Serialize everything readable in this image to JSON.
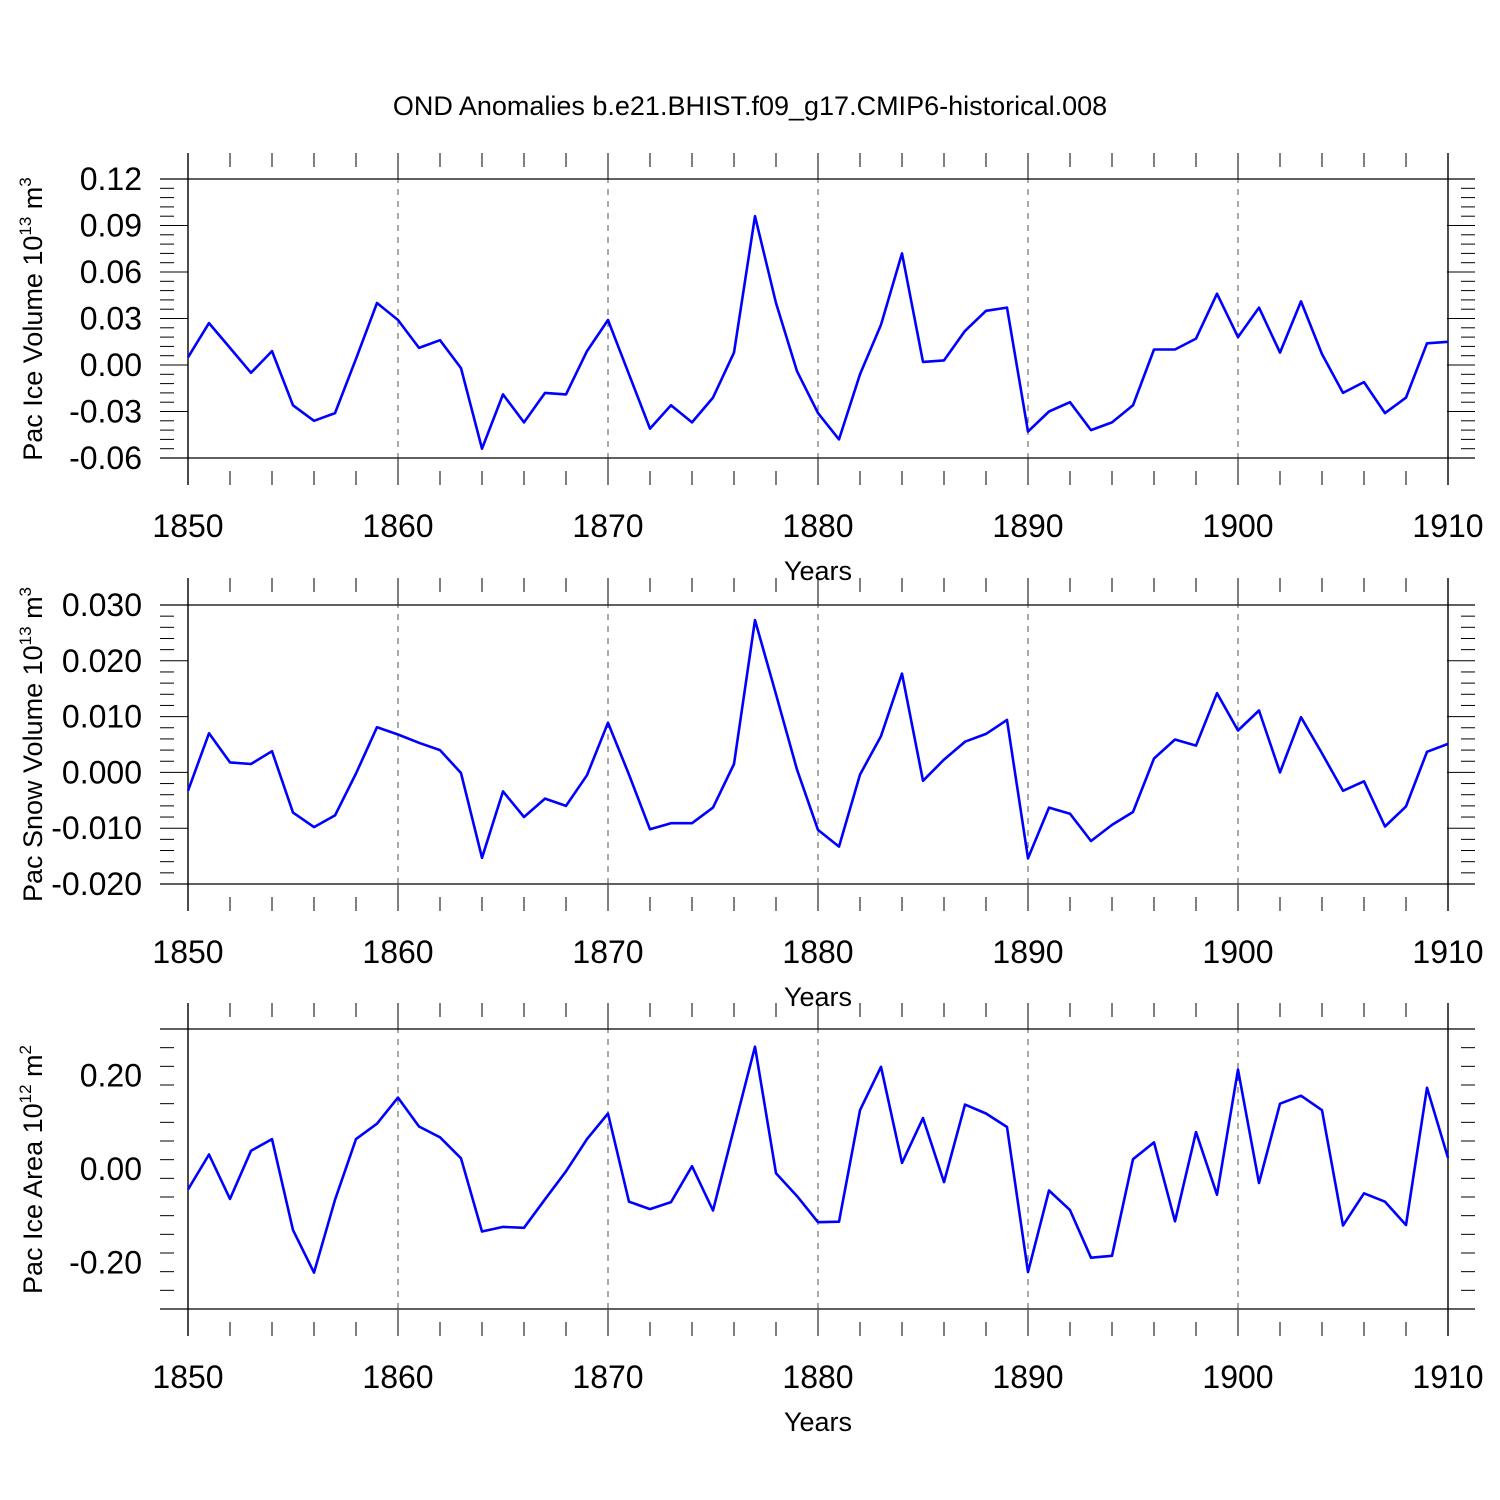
{
  "figure_title": "OND Anomalies b.e21.BHIST.f09_g17.CMIP6-historical.008",
  "colors": {
    "line": "#0000ff",
    "axis": "#000000",
    "grid": "#555555"
  },
  "chart_data": [
    {
      "type": "line",
      "title": "OND Anomalies b.e21.BHIST.f09_g17.CMIP6-historical.008",
      "ylabel_main": "Pac Ice Volume 10",
      "ylabel_sup": "13",
      "ylabel_unit": " m",
      "ylabel_unit_sup": "3",
      "xlabel": "Years",
      "xlim": [
        1850,
        1910
      ],
      "ylim": [
        -0.06,
        0.12
      ],
      "yticks": [
        -0.06,
        -0.03,
        0.0,
        0.03,
        0.06,
        0.09,
        0.12
      ],
      "ytick_labels": [
        "-0.06",
        "-0.03",
        "0.00",
        "0.03",
        "0.06",
        "0.09",
        "0.12"
      ],
      "xticks": [
        1850,
        1860,
        1870,
        1880,
        1890,
        1900,
        1910
      ],
      "xtick_labels": [
        "1850",
        "1860",
        "1870",
        "1880",
        "1890",
        "1900",
        "1910"
      ],
      "grid": "vertical dashed at decades",
      "series": [
        {
          "name": "Pac Ice Volume",
          "x": [
            1850,
            1851,
            1852,
            1853,
            1854,
            1855,
            1856,
            1857,
            1858,
            1859,
            1860,
            1861,
            1862,
            1863,
            1864,
            1865,
            1866,
            1867,
            1868,
            1869,
            1870,
            1871,
            1872,
            1873,
            1874,
            1875,
            1876,
            1877,
            1878,
            1879,
            1880,
            1881,
            1882,
            1883,
            1884,
            1885,
            1886,
            1887,
            1888,
            1889,
            1890,
            1891,
            1892,
            1893,
            1894,
            1895,
            1896,
            1897,
            1898,
            1899,
            1900,
            1901,
            1902,
            1903,
            1904,
            1905,
            1906,
            1907,
            1908,
            1909,
            1910
          ],
          "values": [
            0.005,
            0.027,
            0.011,
            -0.005,
            0.009,
            -0.026,
            -0.036,
            -0.031,
            0.004,
            0.04,
            0.029,
            0.011,
            0.016,
            -0.002,
            -0.054,
            -0.019,
            -0.037,
            -0.018,
            -0.019,
            0.009,
            0.029,
            -0.006,
            -0.041,
            -0.026,
            -0.037,
            -0.021,
            0.008,
            0.096,
            0.04,
            -0.004,
            -0.031,
            -0.048,
            -0.006,
            0.026,
            0.072,
            0.002,
            0.003,
            0.022,
            0.035,
            0.037,
            -0.043,
            -0.03,
            -0.024,
            -0.042,
            -0.037,
            -0.026,
            0.01,
            0.01,
            0.017,
            0.046,
            0.018,
            0.037,
            0.008,
            0.041,
            0.007,
            -0.018,
            -0.011,
            -0.031,
            -0.021,
            0.014,
            0.015
          ]
        }
      ]
    },
    {
      "type": "line",
      "ylabel_main": "Pac Snow Volume 10",
      "ylabel_sup": "13",
      "ylabel_unit": " m",
      "ylabel_unit_sup": "3",
      "xlabel": "Years",
      "xlim": [
        1850,
        1910
      ],
      "ylim": [
        -0.02,
        0.03
      ],
      "yticks": [
        -0.02,
        -0.01,
        0.0,
        0.01,
        0.02,
        0.03
      ],
      "ytick_labels": [
        "-0.020",
        "-0.010",
        "0.000",
        "0.010",
        "0.020",
        "0.030"
      ],
      "xticks": [
        1850,
        1860,
        1870,
        1880,
        1890,
        1900,
        1910
      ],
      "xtick_labels": [
        "1850",
        "1860",
        "1870",
        "1880",
        "1890",
        "1900",
        "1910"
      ],
      "grid": "vertical dashed at decades",
      "series": [
        {
          "name": "Pac Snow Volume",
          "x": [
            1850,
            1851,
            1852,
            1853,
            1854,
            1855,
            1856,
            1857,
            1858,
            1859,
            1860,
            1861,
            1862,
            1863,
            1864,
            1865,
            1866,
            1867,
            1868,
            1869,
            1870,
            1871,
            1872,
            1873,
            1874,
            1875,
            1876,
            1877,
            1878,
            1879,
            1880,
            1881,
            1882,
            1883,
            1884,
            1885,
            1886,
            1887,
            1888,
            1889,
            1890,
            1891,
            1892,
            1893,
            1894,
            1895,
            1896,
            1897,
            1898,
            1899,
            1900,
            1901,
            1902,
            1903,
            1904,
            1905,
            1906,
            1907,
            1908,
            1909,
            1910
          ],
          "values": [
            -0.0033,
            0.007,
            0.0018,
            0.0015,
            0.0038,
            -0.0072,
            -0.0098,
            -0.0077,
            -0.0002,
            0.0081,
            0.0068,
            0.0053,
            0.004,
            -0.0001,
            -0.0153,
            -0.0034,
            -0.008,
            -0.0047,
            -0.006,
            -0.0005,
            0.0089,
            -0.0004,
            -0.0102,
            -0.0091,
            -0.0091,
            -0.0063,
            0.0015,
            0.0273,
            0.014,
            0.0005,
            -0.0103,
            -0.0133,
            -0.0004,
            0.0065,
            0.0177,
            -0.0015,
            0.0023,
            0.0055,
            0.0069,
            0.0094,
            -0.0154,
            -0.0063,
            -0.0074,
            -0.0123,
            -0.0094,
            -0.0071,
            0.0025,
            0.0059,
            0.0048,
            0.0142,
            0.0075,
            0.0111,
            0.0,
            0.0099,
            0.0034,
            -0.0033,
            -0.0016,
            -0.0097,
            -0.0061,
            0.0037,
            0.0051
          ]
        }
      ]
    },
    {
      "type": "line",
      "ylabel_main": "Pac Ice Area 10",
      "ylabel_sup": "12",
      "ylabel_unit": " m",
      "ylabel_unit_sup": "2",
      "xlabel": "Years",
      "xlim": [
        1850,
        1910
      ],
      "ylim": [
        -0.3,
        0.3
      ],
      "yticks": [
        -0.2,
        0.0,
        0.2
      ],
      "ytick_labels": [
        "-0.20",
        "0.00",
        "0.20"
      ],
      "xticks": [
        1850,
        1860,
        1870,
        1880,
        1890,
        1900,
        1910
      ],
      "xtick_labels": [
        "1850",
        "1860",
        "1870",
        "1880",
        "1890",
        "1900",
        "1910"
      ],
      "grid": "vertical dashed at decades",
      "series": [
        {
          "name": "Pac Ice Area",
          "x": [
            1850,
            1851,
            1852,
            1853,
            1854,
            1855,
            1856,
            1857,
            1858,
            1859,
            1860,
            1861,
            1862,
            1863,
            1864,
            1865,
            1866,
            1867,
            1868,
            1869,
            1870,
            1871,
            1872,
            1873,
            1874,
            1875,
            1876,
            1877,
            1878,
            1879,
            1880,
            1881,
            1882,
            1883,
            1884,
            1885,
            1886,
            1887,
            1888,
            1889,
            1890,
            1891,
            1892,
            1893,
            1894,
            1895,
            1896,
            1897,
            1898,
            1899,
            1900,
            1901,
            1902,
            1903,
            1904,
            1905,
            1906,
            1907,
            1908,
            1909,
            1910
          ],
          "values": [
            -0.044,
            0.031,
            -0.064,
            0.039,
            0.064,
            -0.131,
            -0.222,
            -0.066,
            0.064,
            0.097,
            0.153,
            0.091,
            0.068,
            0.023,
            -0.134,
            -0.124,
            -0.126,
            -0.065,
            -0.005,
            0.064,
            0.119,
            -0.07,
            -0.086,
            -0.071,
            0.006,
            -0.089,
            0.087,
            0.262,
            -0.009,
            -0.058,
            -0.114,
            -0.113,
            0.126,
            0.219,
            0.013,
            0.109,
            -0.028,
            0.138,
            0.119,
            0.09,
            -0.221,
            -0.046,
            -0.088,
            -0.19,
            -0.186,
            0.021,
            0.057,
            -0.112,
            0.079,
            -0.055,
            0.213,
            -0.03,
            0.14,
            0.157,
            0.126,
            -0.121,
            -0.052,
            -0.07,
            -0.12,
            0.174,
            0.024
          ]
        }
      ]
    }
  ]
}
